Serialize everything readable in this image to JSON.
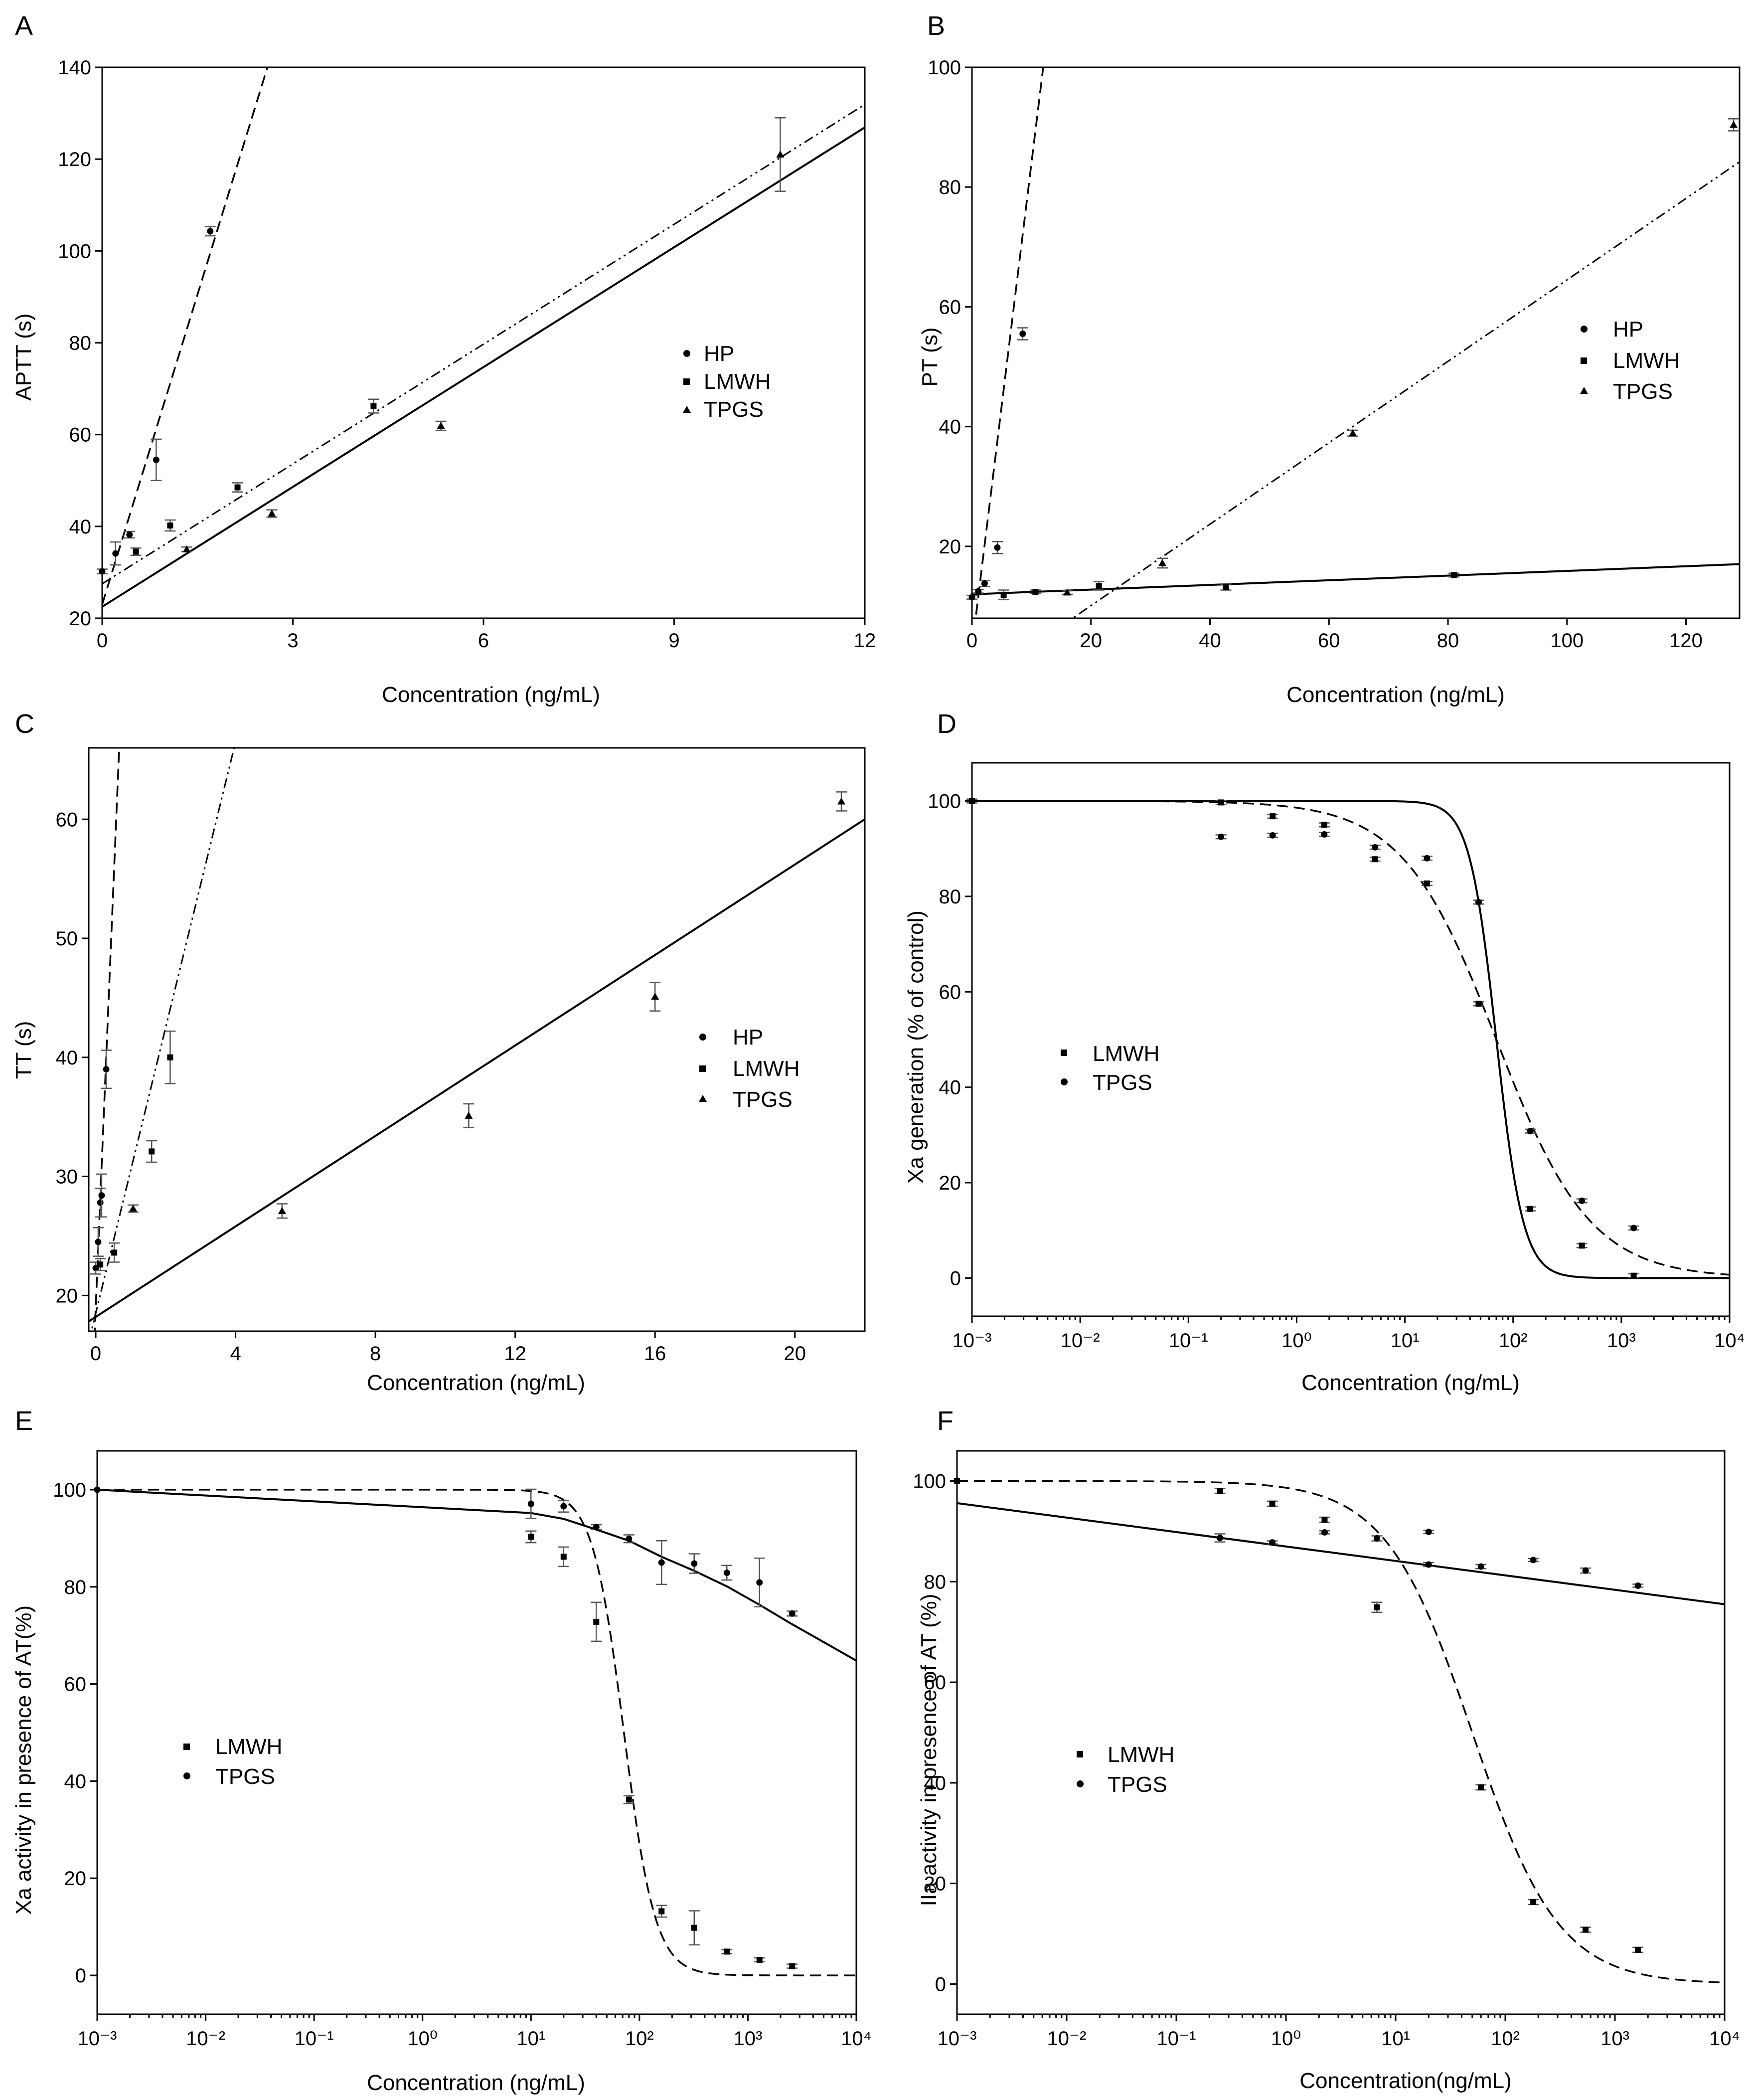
{
  "figure": {
    "panels": [
      {
        "letter": "A",
        "xlabel": "Concentration (ng/mL)",
        "ylabel": "APTT (s)",
        "legend": [
          "HP",
          "LMWH",
          "TPGS"
        ]
      },
      {
        "letter": "B",
        "xlabel": "Concentration (ng/mL)",
        "ylabel": "PT (s)",
        "legend": [
          "HP",
          "LMWH",
          "TPGS"
        ]
      },
      {
        "letter": "C",
        "xlabel": "Concentration (ng/mL)",
        "ylabel": "TT (s)",
        "legend": [
          "HP",
          "LMWH",
          "TPGS"
        ]
      },
      {
        "letter": "D",
        "xlabel": "Concentration (ng/mL)",
        "ylabel": "Xa generation (% of control)",
        "legend": [
          "LMWH",
          "TPGS"
        ]
      },
      {
        "letter": "E",
        "xlabel": "Concentration (ng/mL)",
        "ylabel": "Xa activity in presence of AT(%)",
        "legend": [
          "LMWH",
          "TPGS"
        ]
      },
      {
        "letter": "F",
        "xlabel": "Concentration(ng/mL)",
        "ylabel": "IIa activity in presence of AT (%)",
        "legend": [
          "LMWH",
          "TPGS"
        ]
      }
    ]
  },
  "chart_data": [
    {
      "panel": "A",
      "type": "scatter",
      "xlabel": "Concentration (ng/mL)",
      "ylabel": "APTT (s)",
      "xlim": [
        0,
        12
      ],
      "ylim": [
        20,
        140
      ],
      "xticks": [
        0,
        3,
        6,
        9,
        12
      ],
      "yticks": [
        20,
        40,
        60,
        80,
        100,
        120,
        140
      ],
      "legend_position": "right",
      "series": [
        {
          "name": "HP",
          "marker": "circle",
          "fit": "dashed",
          "points": [
            [
              0,
              30.2
            ],
            [
              0.21,
              34.1
            ],
            [
              0.43,
              38.2
            ],
            [
              0.85,
              54.5
            ],
            [
              1.7,
              104.3
            ]
          ],
          "errors": [
            0.5,
            2.5,
            0.7,
            4.5,
            1.0
          ],
          "fit_line": {
            "slope": 45,
            "intercept": 23
          }
        },
        {
          "name": "LMWH",
          "marker": "square",
          "fit": "dash-dot-dot",
          "points": [
            [
              0.53,
              34.5
            ],
            [
              1.07,
              40.2
            ],
            [
              2.13,
              48.5
            ],
            [
              4.27,
              66.2
            ]
          ],
          "errors": [
            0.8,
            1.2,
            1.0,
            1.5
          ],
          "fit_line": {
            "slope": 8.7,
            "intercept": 27.5
          }
        },
        {
          "name": "TPGS",
          "marker": "triangle",
          "fit": "solid",
          "points": [
            [
              1.33,
              35.0
            ],
            [
              2.67,
              42.8
            ],
            [
              5.33,
              61.9
            ],
            [
              10.67,
              121.0
            ]
          ],
          "errors": [
            0.5,
            0.8,
            1.0,
            8.0
          ],
          "fit_line": {
            "slope": 8.7,
            "intercept": 22.5
          }
        }
      ]
    },
    {
      "panel": "B",
      "type": "scatter",
      "xlabel": "Concentration (ng/mL)",
      "ylabel": "PT (s)",
      "xlim": [
        0,
        129
      ],
      "ylim": [
        8,
        100
      ],
      "xticks": [
        0,
        20,
        40,
        60,
        80,
        100,
        120
      ],
      "yticks": [
        20,
        40,
        60,
        80,
        100
      ],
      "legend_position": "right",
      "series": [
        {
          "name": "HP",
          "marker": "circle",
          "fit": "dashed",
          "points": [
            [
              0,
              11.5
            ],
            [
              1.07,
              12.5
            ],
            [
              2.13,
              13.8
            ],
            [
              4.27,
              19.8
            ],
            [
              8.53,
              55.5
            ]
          ],
          "errors": [
            0.3,
            0.3,
            0.5,
            1.0,
            1.0
          ],
          "fit_line": {
            "slope": 8.1,
            "intercept": 3
          }
        },
        {
          "name": "LMWH",
          "marker": "square",
          "fit": "solid",
          "points": [
            [
              5.33,
              11.9
            ],
            [
              10.67,
              12.4
            ],
            [
              21.33,
              13.4
            ],
            [
              42.67,
              13.2
            ],
            [
              81.0,
              15.2
            ]
          ],
          "errors": [
            0.8,
            0.3,
            0.7,
            0.5,
            0.3
          ],
          "fit_line": {
            "slope": 0.039,
            "intercept": 12.0
          }
        },
        {
          "name": "TPGS",
          "marker": "triangle",
          "fit": "dash-dot-dot",
          "points": [
            [
              16.0,
              12.3
            ],
            [
              32.0,
              17.2
            ],
            [
              64.0,
              38.9
            ],
            [
              128.0,
              90.4
            ]
          ],
          "errors": [
            0.3,
            0.8,
            0.5,
            1.0
          ],
          "fit_line": {
            "slope": 0.68,
            "intercept": -3.5
          }
        }
      ]
    },
    {
      "panel": "C",
      "type": "scatter",
      "xlabel": "Concentration (ng/mL)",
      "ylabel": "TT (s)",
      "xlim": [
        -0.2,
        22
      ],
      "ylim": [
        17,
        66
      ],
      "xticks": [
        0,
        4,
        8,
        12,
        16,
        20
      ],
      "yticks": [
        20,
        30,
        40,
        50,
        60
      ],
      "legend_position": "right",
      "series": [
        {
          "name": "HP",
          "marker": "circle",
          "fit": "dashed",
          "points": [
            [
              0,
              22.3
            ],
            [
              0.07,
              24.5
            ],
            [
              0.13,
              27.8
            ],
            [
              0.17,
              28.4
            ],
            [
              0.3,
              39.0
            ]
          ],
          "errors": [
            0.5,
            1.2,
            1.2,
            1.8,
            1.6
          ],
          "fit_line": {
            "slope": 70,
            "intercept": 19
          }
        },
        {
          "name": "LMWH",
          "marker": "square",
          "fit": "dash-dot-dot",
          "points": [
            [
              0.13,
              22.6
            ],
            [
              0.53,
              23.6
            ],
            [
              1.6,
              32.1
            ],
            [
              2.13,
              40.0
            ]
          ],
          "errors": [
            0.5,
            0.8,
            0.9,
            2.2
          ],
          "fit_line": {
            "slope": 12,
            "intercept": 18.5
          }
        },
        {
          "name": "TPGS",
          "marker": "triangle",
          "fit": "solid",
          "points": [
            [
              1.07,
              27.3
            ],
            [
              5.33,
              27.1
            ],
            [
              10.67,
              35.1
            ],
            [
              16.0,
              45.1
            ],
            [
              21.33,
              61.5
            ]
          ],
          "errors": [
            0.3,
            0.6,
            1.0,
            1.2,
            0.8
          ],
          "fit_line": {
            "slope": 1.9,
            "intercept": 18.2
          }
        }
      ]
    },
    {
      "panel": "D",
      "type": "scatter",
      "xscale": "log",
      "xlabel": "Concentration (ng/mL)",
      "ylabel": "Xa generation (% of control)",
      "xlim": [
        0.001,
        10000
      ],
      "ylim": [
        -8,
        108
      ],
      "xtick_exponents": [
        -3,
        -2,
        -1,
        0,
        1,
        2,
        3,
        4
      ],
      "yticks": [
        0,
        20,
        40,
        60,
        80,
        100
      ],
      "legend_position": "left",
      "series": [
        {
          "name": "LMWH",
          "marker": "square",
          "fit": "solid",
          "points": [
            [
              0.001,
              100
            ],
            [
              0.2,
              99.7
            ],
            [
              0.6,
              96.8
            ],
            [
              1.8,
              95.0
            ],
            [
              5.3,
              87.8
            ],
            [
              16,
              82.7
            ],
            [
              48,
              57.5
            ],
            [
              144,
              14.5
            ],
            [
              432,
              6.8
            ],
            [
              1300,
              0.5
            ]
          ],
          "fit_curve": {
            "top": 100,
            "bottom": 0,
            "ic50": 70,
            "hill": 3.5
          }
        },
        {
          "name": "TPGS",
          "marker": "circle",
          "fit": "dashed",
          "points": [
            [
              0.2,
              92.5
            ],
            [
              0.6,
              92.8
            ],
            [
              1.8,
              93.0
            ],
            [
              5.3,
              90.3
            ],
            [
              16,
              88.0
            ],
            [
              48,
              78.8
            ],
            [
              144,
              30.8
            ],
            [
              432,
              16.2
            ],
            [
              1300,
              10.5
            ]
          ],
          "fit_curve": {
            "top": 100,
            "bottom": 0,
            "ic50": 70,
            "hill": 1.0
          }
        }
      ]
    },
    {
      "panel": "E",
      "type": "scatter",
      "xscale": "log",
      "xlabel": "Concentration (ng/mL)",
      "ylabel": "Xa activity in presence of AT(%)",
      "xlim": [
        0.001,
        10000
      ],
      "ylim": [
        -8,
        108
      ],
      "xtick_exponents": [
        -3,
        -2,
        -1,
        0,
        1,
        2,
        3,
        4
      ],
      "yticks": [
        0,
        20,
        40,
        60,
        80,
        100
      ],
      "legend_position": "left",
      "series": [
        {
          "name": "LMWH",
          "marker": "square",
          "fit": "dashed",
          "points": [
            [
              10,
              90.3
            ],
            [
              20,
              86.2
            ],
            [
              40,
              72.8
            ],
            [
              80,
              36.2
            ],
            [
              160,
              13.2
            ],
            [
              320,
              9.8
            ],
            [
              640,
              4.9
            ],
            [
              1280,
              3.2
            ],
            [
              2560,
              1.9
            ]
          ],
          "errors": [
            1.2,
            2.0,
            4.0,
            0.8,
            1.2,
            3.5,
            0.4,
            0.4,
            0.4
          ],
          "fit_curve": {
            "top": 100,
            "bottom": 0,
            "ic50": 72,
            "hill": 3.0
          }
        },
        {
          "name": "TPGS",
          "marker": "circle",
          "fit": "solid",
          "points": [
            [
              0.001,
              100
            ],
            [
              10,
              97.1
            ],
            [
              20,
              96.6
            ],
            [
              40,
              92.3
            ],
            [
              80,
              89.9
            ],
            [
              160,
              85.0
            ],
            [
              320,
              84.8
            ],
            [
              640,
              82.9
            ],
            [
              1280,
              80.9
            ],
            [
              2560,
              74.5
            ]
          ],
          "errors": [
            0,
            3.0,
            1.2,
            0.5,
            0.8,
            4.5,
            2.0,
            1.5,
            5.0,
            0.5
          ],
          "fit_curve": {
            "type": "piecewise",
            "knots": [
              [
                0.001,
                100
              ],
              [
                10,
                95.2
              ],
              [
                20,
                94.0
              ],
              [
                40,
                91.8
              ],
              [
                80,
                89.5
              ],
              [
                160,
                86.2
              ],
              [
                320,
                83.3
              ],
              [
                640,
                80.1
              ],
              [
                1280,
                76.3
              ],
              [
                2560,
                72.3
              ],
              [
                5120,
                68.5
              ],
              [
                10000,
                64.8
              ]
            ]
          }
        }
      ]
    },
    {
      "panel": "F",
      "type": "scatter",
      "xscale": "log",
      "xlabel": "Concentration(ng/mL)",
      "ylabel": "IIa activity in presence of AT (%)",
      "xlim": [
        0.001,
        10000
      ],
      "ylim": [
        -6,
        106
      ],
      "xtick_exponents": [
        -3,
        -2,
        -1,
        0,
        1,
        2,
        3,
        4
      ],
      "yticks": [
        0,
        20,
        40,
        60,
        80,
        100
      ],
      "legend_position": "left",
      "series": [
        {
          "name": "LMWH",
          "marker": "square",
          "fit": "dashed",
          "points": [
            [
              0.001,
              100
            ],
            [
              0.25,
              98.0
            ],
            [
              0.75,
              95.5
            ],
            [
              2.25,
              92.3
            ],
            [
              6.75,
              74.9
            ],
            [
              60,
              39.1
            ],
            [
              180,
              16.3
            ],
            [
              540,
              10.8
            ],
            [
              1620,
              6.8
            ]
          ],
          "errors": [
            0,
            0.5,
            0.5,
            0.5,
            1.0,
            0.5,
            0.5,
            0.5,
            0.5
          ],
          "fit_curve": {
            "top": 100,
            "bottom": 0,
            "ic50": 50,
            "hill": 1.1
          }
        },
        {
          "name": "TPGS",
          "marker": "circle",
          "fit": "solid",
          "points": [
            [
              0.25,
              88.7
            ],
            [
              0.75,
              87.8
            ],
            [
              2.25,
              89.8
            ],
            [
              6.75,
              88.6
            ],
            [
              20,
              89.9
            ],
            [
              20,
              83.4
            ],
            [
              60,
              83.0
            ],
            [
              180,
              84.3
            ],
            [
              540,
              82.2
            ],
            [
              1620,
              79.2
            ]
          ],
          "errors": [
            0.8,
            0.3,
            0.3,
            0.5,
            0.3,
            0.4,
            0.4,
            0.3,
            0.5,
            0.3
          ],
          "fit_curve": {
            "type": "linear-log",
            "start": [
              0.001,
              95.6
            ],
            "end": [
              10000,
              75.5
            ]
          }
        }
      ]
    }
  ]
}
